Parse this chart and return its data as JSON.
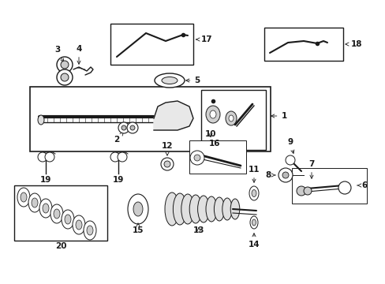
{
  "background_color": "#ffffff",
  "figsize": [
    4.89,
    3.6
  ],
  "dpi": 100
}
